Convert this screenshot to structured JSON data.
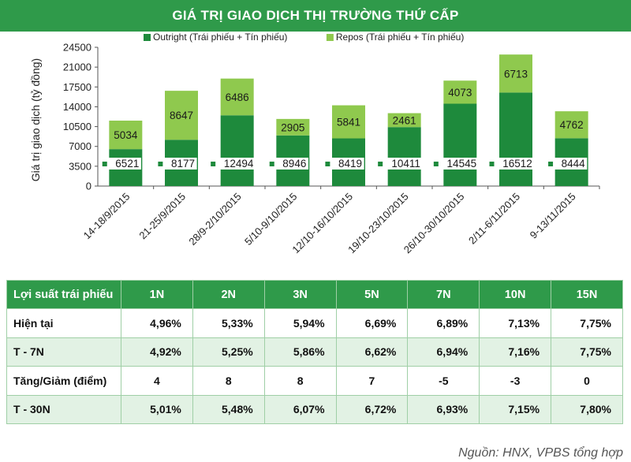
{
  "chart_data": {
    "type": "bar",
    "stacked": true,
    "title": "GIÁ TRỊ GIAO DỊCH THỊ TRƯỜNG THỨ CẤP",
    "ylabel": "Giá trị giao dịch (tỷ đồng)",
    "xlabel": "",
    "ylim": [
      0,
      24500
    ],
    "yticks": [
      0,
      3500,
      7000,
      10500,
      14000,
      17500,
      21000,
      24500
    ],
    "categories": [
      "14-18/9/2015",
      "21-25/9/2015",
      "28/9-2/10/2015",
      "5/10-9/10/2015",
      "12/10-16/10/2015",
      "19/10-23/10/2015",
      "26/10-30/10/2015",
      "2/11-6/11/2015",
      "9-13/11/2015"
    ],
    "series": [
      {
        "name": "Outright (Trái phiếu + Tín phiếu)",
        "color": "#1e8a3c",
        "values": [
          6521,
          8177,
          12494,
          8946,
          8419,
          10411,
          14545,
          16512,
          8444
        ]
      },
      {
        "name": "Repos (Trái phiếu + Tín phiếu)",
        "color": "#8fc94e",
        "values": [
          5034,
          8647,
          6486,
          2905,
          5841,
          2461,
          4073,
          6713,
          4762
        ]
      }
    ],
    "legend_position": "top"
  },
  "yield_table": {
    "header": [
      "Lợi suất trái phiếu",
      "1N",
      "2N",
      "3N",
      "5N",
      "7N",
      "10N",
      "15N"
    ],
    "rows": [
      {
        "label": "Hiện tại",
        "values": [
          "4,96%",
          "5,33%",
          "5,94%",
          "6,69%",
          "6,89%",
          "7,13%",
          "7,75%"
        ]
      },
      {
        "label": "T - 7N",
        "values": [
          "4,92%",
          "5,25%",
          "5,86%",
          "6,62%",
          "6,94%",
          "7,16%",
          "7,75%"
        ]
      },
      {
        "label": "Tăng/Giảm (điểm)",
        "values": [
          "4",
          "8",
          "8",
          "7",
          "-5",
          "-3",
          "0"
        ]
      },
      {
        "label": "T - 30N",
        "values": [
          "5,01%",
          "5,48%",
          "6,07%",
          "6,72%",
          "6,93%",
          "7,15%",
          "7,80%"
        ]
      }
    ]
  },
  "source": "Nguồn: HNX, VPBS tổng hợp",
  "colors": {
    "header_green": "#2f9a4a",
    "outright": "#1e8a3c",
    "repos": "#8fc94e",
    "row_alt": "#e2f2e4"
  }
}
